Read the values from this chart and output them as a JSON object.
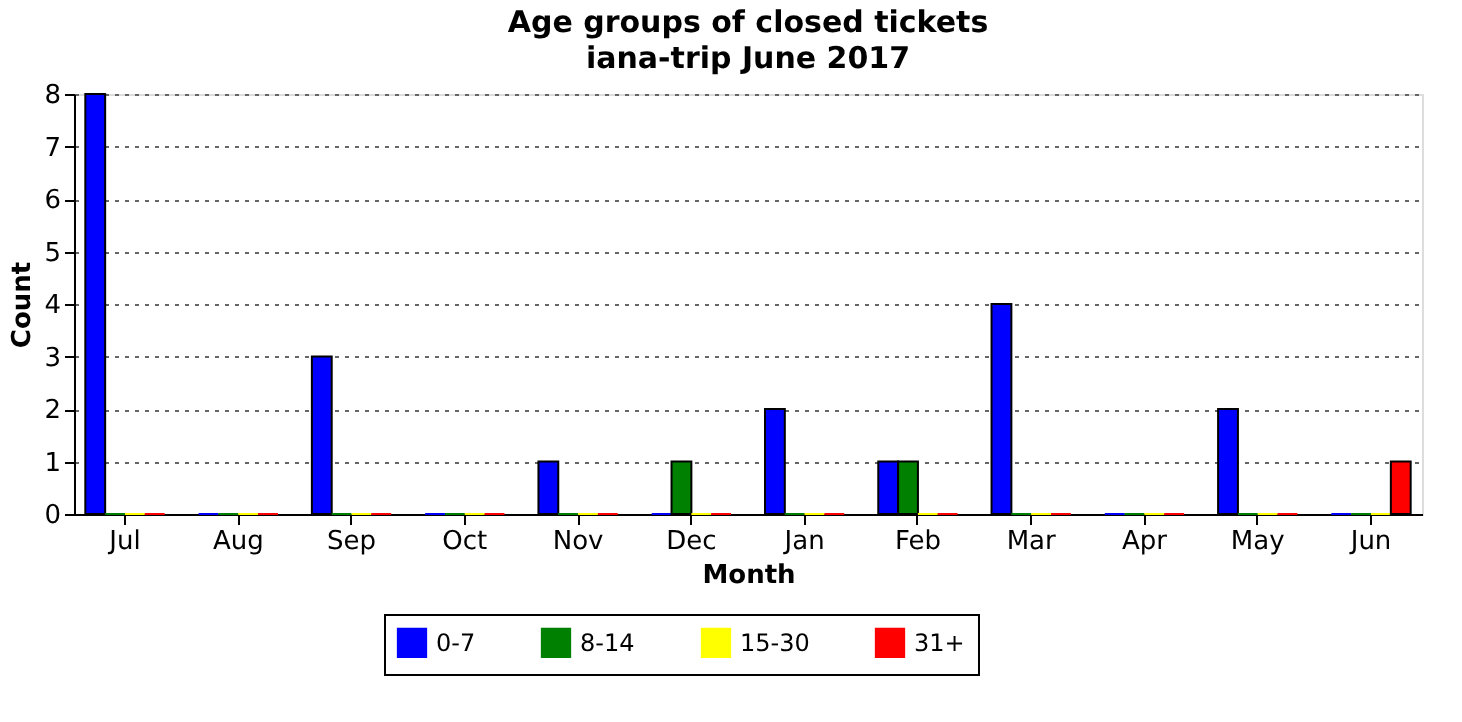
{
  "chart_data": {
    "type": "bar",
    "title": "Age groups of closed tickets",
    "subtitle": "iana-trip June 2017",
    "xlabel": "Month",
    "ylabel": "Count",
    "categories": [
      "Jul",
      "Aug",
      "Sep",
      "Oct",
      "Nov",
      "Dec",
      "Jan",
      "Feb",
      "Mar",
      "Apr",
      "May",
      "Jun"
    ],
    "series": [
      {
        "name": "0-7",
        "color": "#0000ff",
        "values": [
          8,
          0,
          3,
          0,
          1,
          0,
          2,
          1,
          4,
          0,
          2,
          0
        ]
      },
      {
        "name": "8-14",
        "color": "#008000",
        "values": [
          0,
          0,
          0,
          0,
          0,
          1,
          0,
          1,
          0,
          0,
          0,
          0
        ]
      },
      {
        "name": "15-30",
        "color": "#ffff00",
        "values": [
          0,
          0,
          0,
          0,
          0,
          0,
          0,
          0,
          0,
          0,
          0,
          0
        ]
      },
      {
        "name": "31+",
        "color": "#ff0000",
        "values": [
          0,
          0,
          0,
          0,
          0,
          0,
          0,
          0,
          0,
          0,
          0,
          1
        ]
      }
    ],
    "ylim": [
      0,
      8
    ],
    "yticks": [
      0,
      1,
      2,
      3,
      4,
      5,
      6,
      7,
      8
    ],
    "grid": "y",
    "legend": "bottom"
  }
}
